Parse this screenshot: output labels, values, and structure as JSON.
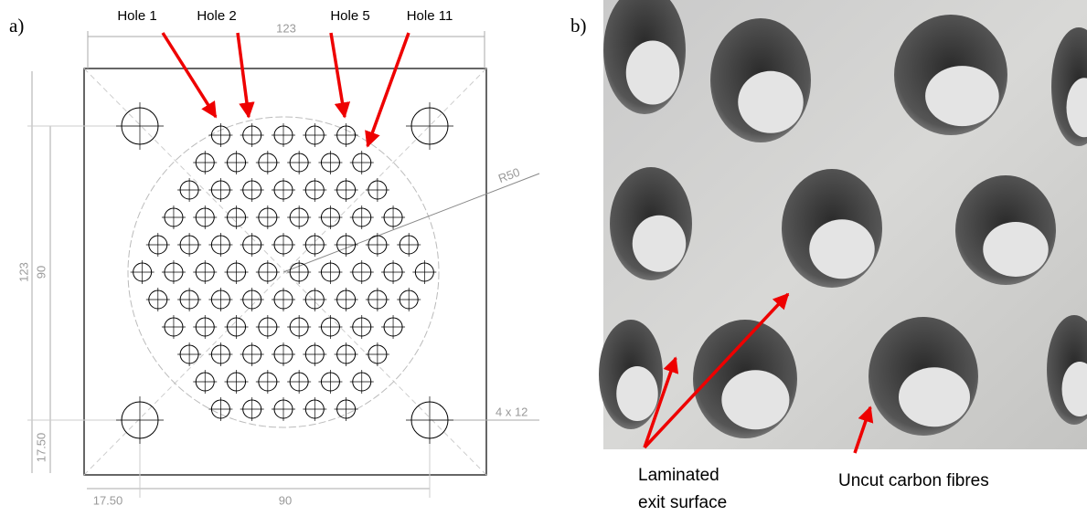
{
  "panel_a": {
    "label": "a)",
    "hole_labels": [
      "Hole 1",
      "Hole 2",
      "Hole 5",
      "Hole 11"
    ],
    "dimensions": {
      "top_width": "123",
      "left_height": "123",
      "inner_height": "90",
      "bottom_width": "90",
      "left_offset": "17.50",
      "bottom_offset": "17.50",
      "radius": "R50",
      "corner_holes": "4 x 12"
    }
  },
  "panel_b": {
    "label": "b)",
    "annotations": {
      "laminated": [
        "Laminated",
        "exit surface"
      ],
      "uncut": "Uncut carbon fibres"
    }
  }
}
